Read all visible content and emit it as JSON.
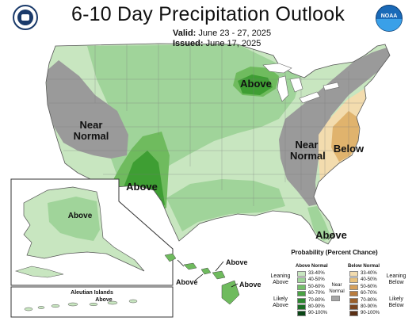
{
  "title": "6-10 Day Precipitation Outlook",
  "valid_label": "Valid:",
  "valid_dates": "June 23 - 27, 2025",
  "issued_label": "Issued:",
  "issued_date": "June 17, 2025",
  "logos": {
    "left": "commerce-seal-icon",
    "right": "noaa-logo-icon"
  },
  "region_labels": {
    "north_midwest": "Above",
    "west_coast": "Near Normal",
    "southwest": "Above",
    "alaska": "Above",
    "appalachians": "Near Normal",
    "mid_atlantic": "Below",
    "florida": "Above",
    "hawaii_1": "Above",
    "hawaii_2": "Above",
    "hawaii_3": "Above",
    "aleutian": "Above"
  },
  "inset_titles": {
    "aleutian": "Aleutian Islands"
  },
  "legend": {
    "title": "Probability (Percent Chance)",
    "above_header": "Above Normal",
    "below_header": "Below Normal",
    "leaning_above": "Leaning Above",
    "likely_above": "Likely Above",
    "near_normal": "Near Normal",
    "leaning_below": "Leaning Below",
    "likely_below": "Likely Below",
    "bins": [
      "33-40%",
      "40-50%",
      "50-60%",
      "60-70%",
      "70-80%",
      "80-90%",
      "90-100%"
    ],
    "above_colors": [
      "#c8e6c0",
      "#a0d49a",
      "#75be6b",
      "#4aa244",
      "#2c8730",
      "#196b22",
      "#0a4616"
    ],
    "below_colors": [
      "#f3dcae",
      "#e9c27d",
      "#d6a05b",
      "#b97c3e",
      "#9a5f2b",
      "#7a4520",
      "#5b3015"
    ],
    "near_color": "#a6a6a6"
  },
  "colors": {
    "near_normal": "#9a9a9a",
    "above_33_40": "#c8e6c0",
    "above_40_50": "#a0d49a",
    "above_50_60": "#6fbb5e",
    "above_60_70": "#3e9e33",
    "below_33_40": "#f3dcae",
    "below_40_50": "#e0b36d"
  }
}
